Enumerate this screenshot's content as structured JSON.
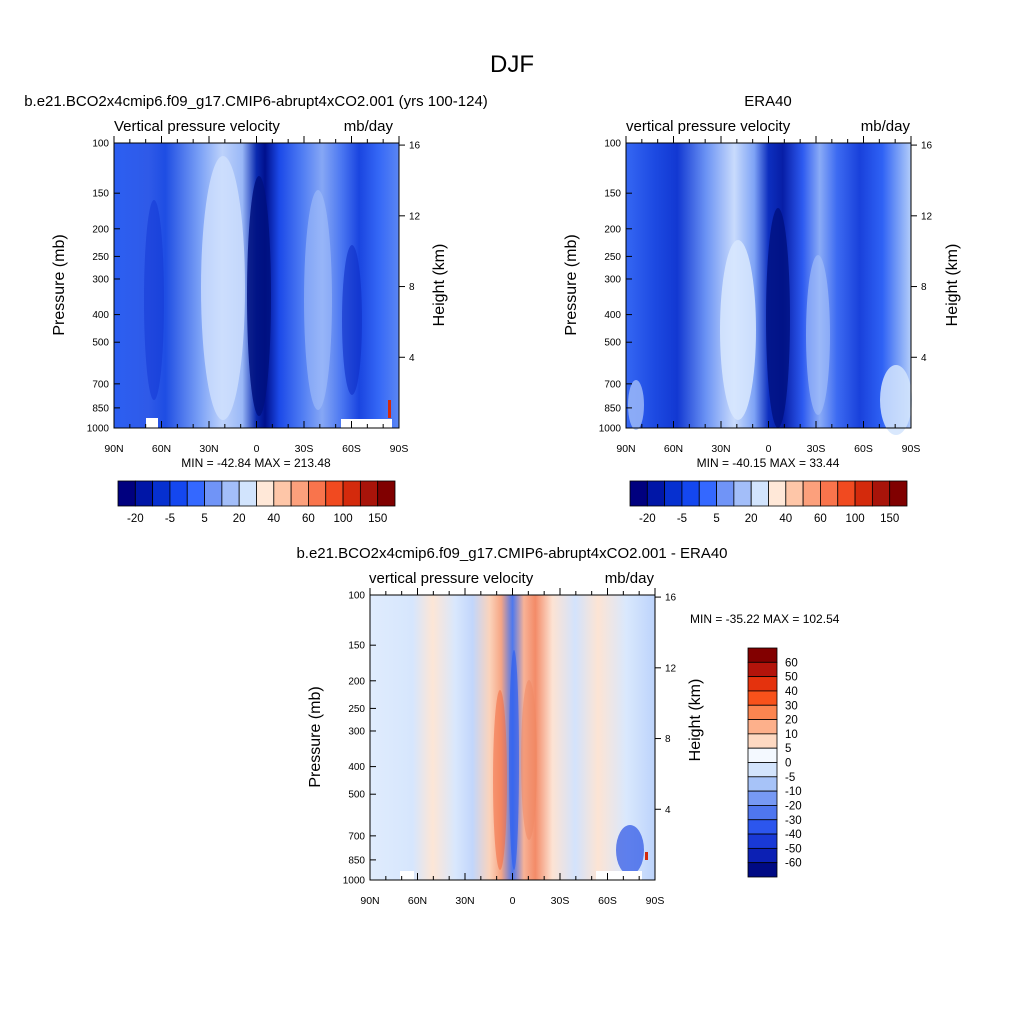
{
  "figure": {
    "title": "DJF"
  },
  "chart_data": [
    {
      "type": "heatmap",
      "panel": "model",
      "title": "b.e21.BCO2x4cmip6.f09_g17.CMIP6-abrupt4xCO2.001 (yrs 100-124)",
      "variable_label": "Vertical pressure velocity",
      "units_label": "mb/day",
      "ylabel": "Pressure (mb)",
      "ylabel_right": "Height (km)",
      "x_ticks": [
        "90N",
        "60N",
        "30N",
        "0",
        "30S",
        "60S",
        "90S"
      ],
      "y_ticks": [
        "100",
        "150",
        "200",
        "250",
        "300",
        "400",
        "500",
        "700",
        "850",
        "1000"
      ],
      "y_ticks_right": [
        "16",
        "12",
        "8",
        "4"
      ],
      "xlim": [
        90,
        -90
      ],
      "ylim": [
        1000,
        100
      ],
      "y_scale": "log",
      "stats": "MIN = -42.84  MAX = 213.48",
      "colorbar_labels": [
        "-20",
        "-5",
        "5",
        "20",
        "40",
        "60",
        "100",
        "150"
      ],
      "colorbar_levels": [
        -30,
        -25,
        -20,
        -15,
        -10,
        -5,
        0,
        5,
        10,
        20,
        30,
        40,
        60,
        80,
        100,
        150
      ],
      "colorbar_orientation": "horizontal"
    },
    {
      "type": "heatmap",
      "panel": "obs",
      "title": "ERA40",
      "variable_label": "vertical pressure velocity",
      "units_label": "mb/day",
      "ylabel": "Pressure (mb)",
      "ylabel_right": "Height (km)",
      "x_ticks": [
        "90N",
        "60N",
        "30N",
        "0",
        "30S",
        "60S",
        "90S"
      ],
      "y_ticks": [
        "100",
        "150",
        "200",
        "250",
        "300",
        "400",
        "500",
        "700",
        "850",
        "1000"
      ],
      "y_ticks_right": [
        "16",
        "12",
        "8",
        "4"
      ],
      "xlim": [
        90,
        -90
      ],
      "ylim": [
        1000,
        100
      ],
      "y_scale": "log",
      "stats": "MIN = -40.15  MAX =  33.44",
      "colorbar_labels": [
        "-20",
        "-5",
        "5",
        "20",
        "40",
        "60",
        "100",
        "150"
      ],
      "colorbar_levels": [
        -30,
        -25,
        -20,
        -15,
        -10,
        -5,
        0,
        5,
        10,
        20,
        30,
        40,
        60,
        80,
        100,
        150
      ],
      "colorbar_orientation": "horizontal"
    },
    {
      "type": "heatmap",
      "panel": "diff",
      "title": "b.e21.BCO2x4cmip6.f09_g17.CMIP6-abrupt4xCO2.001 - ERA40",
      "variable_label": "vertical pressure velocity",
      "units_label": "mb/day",
      "ylabel": "Pressure (mb)",
      "ylabel_right": "Height (km)",
      "x_ticks": [
        "90N",
        "60N",
        "30N",
        "0",
        "30S",
        "60S",
        "90S"
      ],
      "y_ticks": [
        "100",
        "150",
        "200",
        "250",
        "300",
        "400",
        "500",
        "700",
        "850",
        "1000"
      ],
      "y_ticks_right": [
        "16",
        "12",
        "8",
        "4"
      ],
      "xlim": [
        90,
        -90
      ],
      "ylim": [
        1000,
        100
      ],
      "y_scale": "log",
      "stats": "MIN = -35.22  MAX = 102.54",
      "colorbar_labels": [
        "60",
        "50",
        "40",
        "30",
        "20",
        "10",
        "5",
        "0",
        "-5",
        "-10",
        "-20",
        "-30",
        "-40",
        "-50",
        "-60"
      ],
      "colorbar_orientation": "vertical"
    }
  ],
  "palette": {
    "cb14": [
      "#00007f",
      "#0016a7",
      "#0630d0",
      "#1447ef",
      "#3468ff",
      "#7094f7",
      "#a3bef9",
      "#d2e4fd",
      "#ffe8d8",
      "#fec6a8",
      "#fca07c",
      "#f9744c",
      "#f14a20",
      "#d42a0c",
      "#a8140a",
      "#800000"
    ],
    "cb16": [
      "#820000",
      "#b3140b",
      "#e4320d",
      "#f8521b",
      "#fb8550",
      "#fdb08b",
      "#fed9c2",
      "#f4f9ff",
      "#d3e4fc",
      "#a7c3f8",
      "#7799f4",
      "#4f76ef",
      "#2c56ee",
      "#1939d6",
      "#0c20b4",
      "#000a84"
    ]
  }
}
